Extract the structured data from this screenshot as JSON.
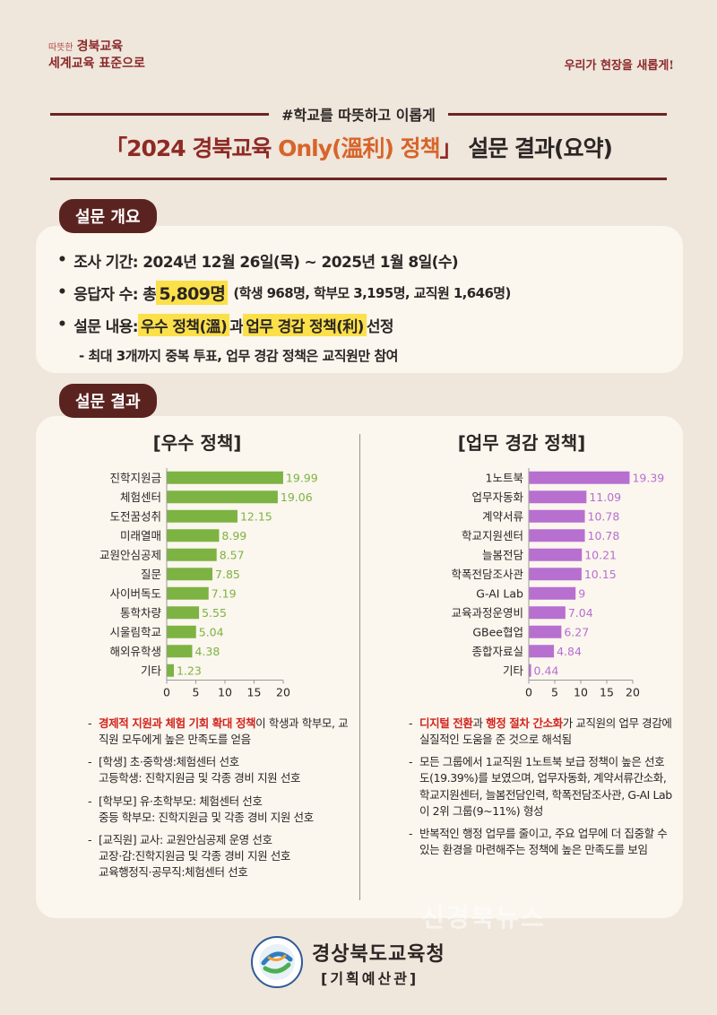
{
  "header": {
    "slogan_warm": "따뜻한",
    "slogan_line1": "경북교육",
    "slogan_line2": "세계교육 표준으로",
    "slogan_right": "우리가 현장을 새롭게!",
    "hashtag": "#학교를 따뜻하고 이롭게",
    "title_open": "「2024 경북교육 ",
    "title_only": "Only(溫利) 정책",
    "title_close": "」 설문 결과(요약)"
  },
  "overview": {
    "label": "설문 개요",
    "period": "조사 기간: 2024년 12월 26일(목) ~ 2025년 1월 8일(수)",
    "respondents_prefix": "응답자 수: 총 ",
    "respondents_total": "5,809명",
    "respondents_detail": "(학생 968명, 학부모 3,195명, 교직원 1,646명)",
    "content_prefix": "설문 내용: ",
    "content_hl1": "우수 정책(溫)",
    "content_mid": "과 ",
    "content_hl2": "업무 경감 정책(利)",
    "content_suffix": " 선정",
    "sub_note": "- 최대 3개까지 중복 투표, 업무 경감 정책은 교직원만 참여"
  },
  "results_label": "설문 결과",
  "chart_data": [
    {
      "type": "bar",
      "orientation": "horizontal",
      "title": "[우수 정책]",
      "color": "#7cb342",
      "categories": [
        "진학지원금",
        "체험센터",
        "도전꿈성취",
        "미래열매",
        "교원안심공제",
        "질문",
        "사이버독도",
        "통학차량",
        "시울림학교",
        "해외유학생",
        "기타"
      ],
      "values": [
        19.99,
        19.06,
        12.15,
        8.99,
        8.57,
        7.85,
        7.19,
        5.55,
        5.04,
        4.38,
        1.23
      ],
      "xlim": [
        0,
        20
      ],
      "ticks": [
        "0",
        "5",
        "10",
        "15",
        "20"
      ]
    },
    {
      "type": "bar",
      "orientation": "horizontal",
      "title": "[업무 경감 정책]",
      "color": "#b76fd0",
      "categories": [
        "1노트북",
        "업무자동화",
        "계약서류",
        "학교지원센터",
        "늘봄전담",
        "학폭전담조사관",
        "G-AI Lab",
        "교육과정운영비",
        "GBee협업",
        "종합자료실",
        "기타"
      ],
      "values": [
        19.39,
        11.09,
        10.78,
        10.78,
        10.21,
        10.15,
        9,
        7.04,
        6.27,
        4.84,
        0.44
      ],
      "xlim": [
        0,
        20
      ],
      "ticks": [
        "0",
        "5",
        "10",
        "15",
        "20"
      ]
    }
  ],
  "notes_left": [
    {
      "red": "경제적 지원과 체험 기회 확대 정책",
      "text": "이 학생과 학부모, 교직원 모두에게 높은 만족도를 얻음"
    },
    {
      "red": "",
      "text": "[학생] 초·중학생:체험센터 선호\n고등학생: 진학지원금 및 각종 경비 지원 선호"
    },
    {
      "red": "",
      "text": "[학부모] 유·초학부모: 체험센터 선호\n중등 학부모: 진학지원금 및 각종 경비 지원 선호"
    },
    {
      "red": "",
      "text": "[교직원] 교사: 교원안심공제 운영 선호\n교장·감:진학지원금 및 각종 경비 지원 선호\n교육행정직·공무직:체험센터 선호"
    }
  ],
  "notes_right": [
    {
      "red": "디지털 전환",
      "mid": "과 ",
      "red2": "행정 절차 간소화",
      "text": "가 교직원의 업무 경감에 실질적인 도움을 준 것으로 해석됨"
    },
    {
      "red": "",
      "mid": "",
      "red2": "",
      "text": "모든 그룹에서 1교직원 1노트북 보급 정책이 높은 선호도(19.39%)를 보였으며, 업무자동화, 계약서류간소화, 학교지원센터, 늘봄전담인력, 학폭전담조사관, G-AI Lab이 2위 그룹(9~11%) 형성"
    },
    {
      "red": "",
      "mid": "",
      "red2": "",
      "text": "반복적인 행정 업무를 줄이고, 주요 업무에 더 집중할 수 있는 환경을 마련해주는 정책에 높은 만족도를 보임"
    }
  ],
  "watermark": "신경북뉴스",
  "footer": {
    "org": "경상북도교육청",
    "dept": "[기획예산관]"
  }
}
